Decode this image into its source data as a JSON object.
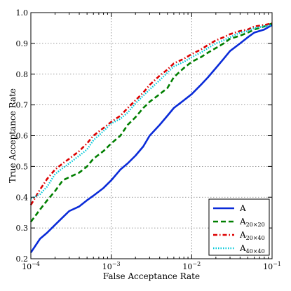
{
  "chart_data": {
    "type": "line",
    "title": "",
    "xlabel": "False Acceptance Rate",
    "ylabel": "True Acceptance Rate",
    "xscale": "log",
    "xlim": [
      0.0001,
      0.1
    ],
    "ylim": [
      0.2,
      1.0
    ],
    "xticks": [
      {
        "value": 0.0001,
        "base": "10",
        "exp": "−4"
      },
      {
        "value": 0.001,
        "base": "10",
        "exp": "−3"
      },
      {
        "value": 0.01,
        "base": "10",
        "exp": "−2"
      },
      {
        "value": 0.1,
        "base": "10",
        "exp": "−1"
      }
    ],
    "yticks": [
      "0.2",
      "0.3",
      "0.4",
      "0.5",
      "0.6",
      "0.7",
      "0.8",
      "0.9",
      "1.0"
    ],
    "grid": true,
    "legend_position": "bottom-right",
    "series": [
      {
        "name": "A",
        "sub": "",
        "color": "#0a2bd8",
        "style": "solid",
        "x": [
          0.0001,
          0.00013,
          0.00016,
          0.0002,
          0.00025,
          0.0003,
          0.0004,
          0.0005,
          0.0006,
          0.0008,
          0.001,
          0.0013,
          0.0016,
          0.002,
          0.0025,
          0.003,
          0.004,
          0.005,
          0.006,
          0.008,
          0.01,
          0.013,
          0.016,
          0.02,
          0.025,
          0.03,
          0.04,
          0.05,
          0.06,
          0.08,
          0.1
        ],
        "y": [
          0.22,
          0.265,
          0.285,
          0.31,
          0.335,
          0.355,
          0.37,
          0.39,
          0.405,
          0.43,
          0.455,
          0.49,
          0.51,
          0.535,
          0.565,
          0.6,
          0.635,
          0.665,
          0.69,
          0.715,
          0.735,
          0.765,
          0.79,
          0.82,
          0.85,
          0.875,
          0.9,
          0.92,
          0.935,
          0.945,
          0.96
        ]
      },
      {
        "name": "A",
        "sub": "20×20",
        "color": "#007f00",
        "style": "dashed",
        "x": [
          0.0001,
          0.00013,
          0.00016,
          0.0002,
          0.00025,
          0.0003,
          0.0004,
          0.0005,
          0.0006,
          0.0008,
          0.001,
          0.0013,
          0.0016,
          0.002,
          0.0025,
          0.003,
          0.004,
          0.005,
          0.006,
          0.008,
          0.01,
          0.013,
          0.016,
          0.02,
          0.025,
          0.03,
          0.04,
          0.05,
          0.06,
          0.08,
          0.1
        ],
        "y": [
          0.32,
          0.36,
          0.39,
          0.42,
          0.455,
          0.465,
          0.48,
          0.5,
          0.525,
          0.55,
          0.575,
          0.6,
          0.635,
          0.66,
          0.69,
          0.71,
          0.735,
          0.755,
          0.79,
          0.82,
          0.84,
          0.855,
          0.87,
          0.885,
          0.9,
          0.915,
          0.925,
          0.935,
          0.945,
          0.955,
          0.965
        ]
      },
      {
        "name": "A",
        "sub": "20×40",
        "color": "#dd0000",
        "style": "dashdot",
        "x": [
          0.0001,
          0.00013,
          0.00016,
          0.0002,
          0.00025,
          0.0003,
          0.0004,
          0.0005,
          0.0006,
          0.0008,
          0.001,
          0.0013,
          0.0016,
          0.002,
          0.0025,
          0.003,
          0.004,
          0.005,
          0.006,
          0.008,
          0.01,
          0.013,
          0.016,
          0.02,
          0.025,
          0.03,
          0.04,
          0.05,
          0.06,
          0.08,
          0.1
        ],
        "y": [
          0.375,
          0.425,
          0.46,
          0.49,
          0.51,
          0.525,
          0.55,
          0.575,
          0.6,
          0.625,
          0.645,
          0.665,
          0.69,
          0.715,
          0.74,
          0.765,
          0.795,
          0.815,
          0.835,
          0.85,
          0.865,
          0.88,
          0.895,
          0.91,
          0.92,
          0.93,
          0.94,
          0.945,
          0.955,
          0.96,
          0.965
        ]
      },
      {
        "name": "A",
        "sub": "40×40",
        "color": "#00c8d8",
        "style": "dotted",
        "x": [
          0.0001,
          0.00013,
          0.00016,
          0.0002,
          0.00025,
          0.0003,
          0.0004,
          0.0005,
          0.0006,
          0.0008,
          0.001,
          0.0013,
          0.0016,
          0.002,
          0.0025,
          0.003,
          0.004,
          0.005,
          0.006,
          0.008,
          0.01,
          0.013,
          0.016,
          0.02,
          0.025,
          0.03,
          0.04,
          0.05,
          0.06,
          0.08,
          0.1
        ],
        "y": [
          0.395,
          0.41,
          0.435,
          0.475,
          0.495,
          0.51,
          0.535,
          0.555,
          0.585,
          0.615,
          0.64,
          0.655,
          0.675,
          0.705,
          0.73,
          0.75,
          0.78,
          0.805,
          0.825,
          0.84,
          0.855,
          0.87,
          0.885,
          0.9,
          0.91,
          0.92,
          0.935,
          0.94,
          0.95,
          0.955,
          0.96
        ]
      }
    ]
  }
}
